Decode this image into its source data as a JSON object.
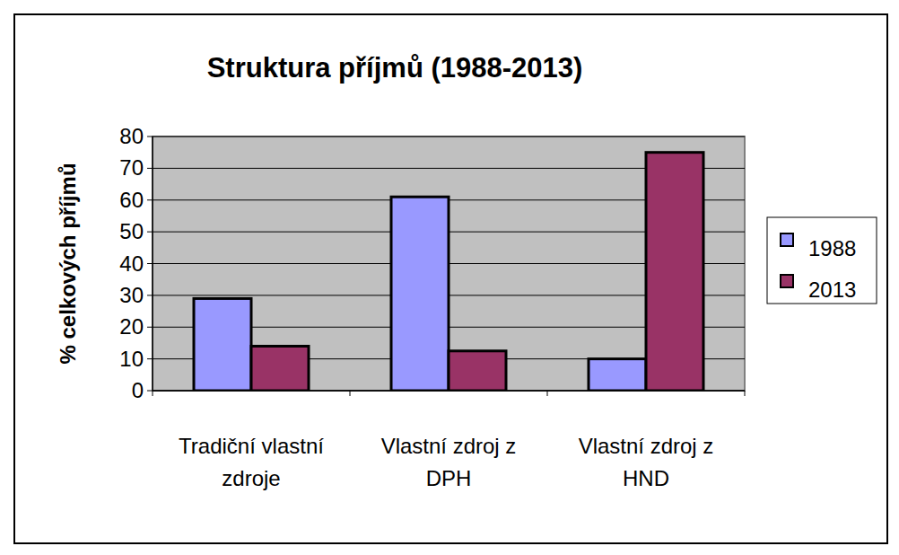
{
  "chart_data": {
    "type": "bar",
    "title": "Struktura příjmů (1988-2013)",
    "y_label": "% celkových příjmů",
    "categories": [
      "Tradiční vlastní zdroje",
      "Vlastní zdroj z DPH",
      "Vlastní zdroj z HND"
    ],
    "series": [
      {
        "name": "1988",
        "color": "#9999ff",
        "values": [
          29,
          61,
          10
        ]
      },
      {
        "name": "2013",
        "color": "#993366",
        "values": [
          14,
          12.5,
          75
        ]
      }
    ],
    "ylim": [
      0,
      80
    ],
    "yticks": [
      0,
      10,
      20,
      30,
      40,
      50,
      60,
      70,
      80
    ],
    "grid": true,
    "legend": "right"
  }
}
